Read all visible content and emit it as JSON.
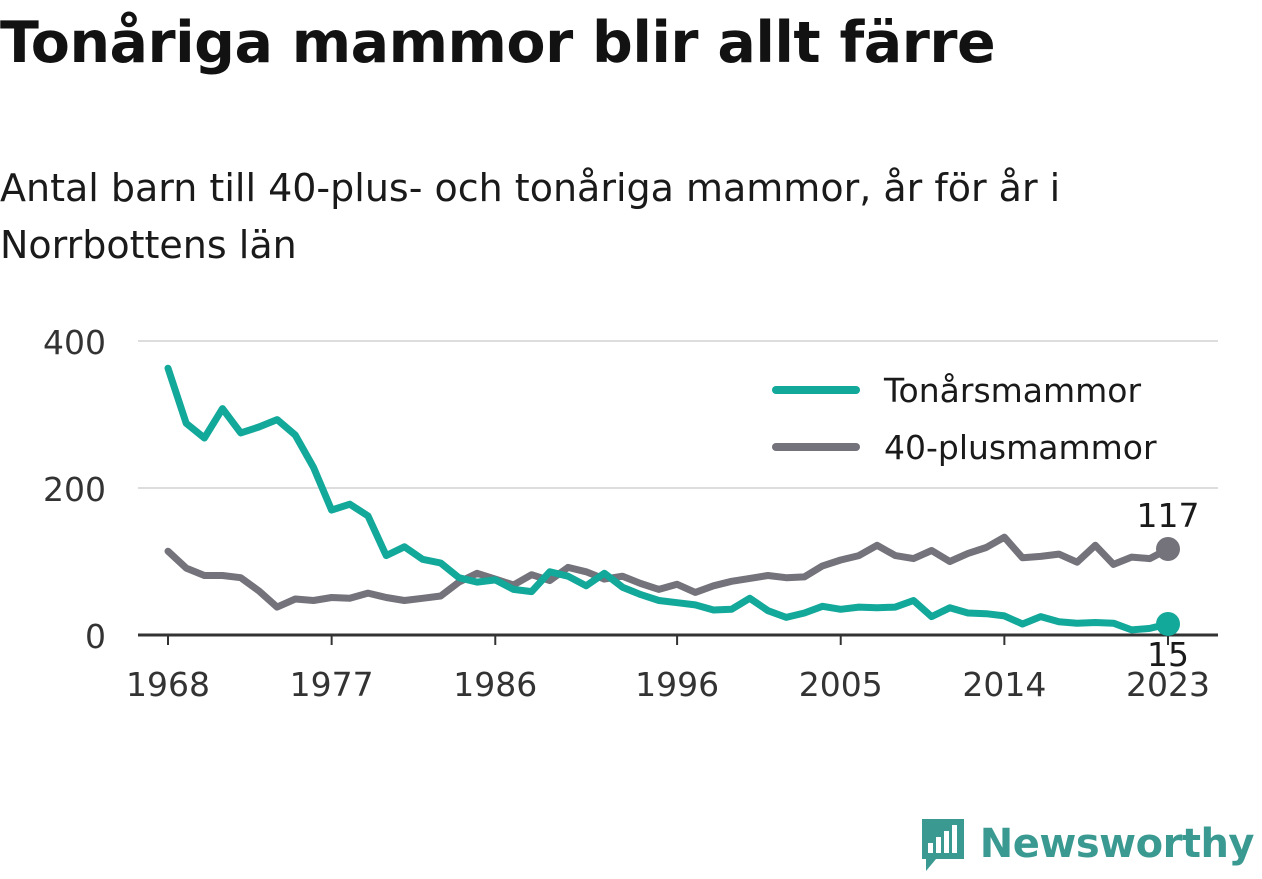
{
  "title": "Tonåriga mammor blir allt färre",
  "subtitle": "Antal barn till 40-plus- och tonåriga mammor, år för år i Norrbottens län",
  "brand": {
    "name": "Newsworthy"
  },
  "colors": {
    "teens": "#12a89a",
    "forty_plus": "#74727a",
    "grid": "#dddddd",
    "axis": "#333333"
  },
  "chart_data": {
    "type": "line",
    "x": [
      1968,
      1969,
      1970,
      1971,
      1972,
      1973,
      1974,
      1975,
      1976,
      1977,
      1978,
      1979,
      1980,
      1981,
      1982,
      1983,
      1984,
      1985,
      1986,
      1987,
      1988,
      1989,
      1990,
      1991,
      1992,
      1993,
      1994,
      1995,
      1996,
      1997,
      1998,
      1999,
      2000,
      2001,
      2002,
      2003,
      2004,
      2005,
      2006,
      2007,
      2008,
      2009,
      2010,
      2011,
      2012,
      2013,
      2014,
      2015,
      2016,
      2017,
      2018,
      2019,
      2020,
      2021,
      2022,
      2023
    ],
    "series": [
      {
        "name": "Tonårsmammor",
        "color": "#12a89a",
        "values": [
          363,
          288,
          268,
          308,
          275,
          283,
          293,
          272,
          228,
          170,
          178,
          162,
          108,
          120,
          103,
          98,
          78,
          72,
          75,
          62,
          59,
          86,
          80,
          67,
          84,
          65,
          55,
          47,
          44,
          41,
          34,
          35,
          50,
          33,
          24,
          30,
          39,
          35,
          38,
          37,
          38,
          47,
          25,
          37,
          30,
          29,
          26,
          15,
          25,
          18,
          16,
          17,
          16,
          7,
          9,
          15
        ]
      },
      {
        "name": "40-plusmammor",
        "color": "#74727a",
        "values": [
          114,
          91,
          81,
          81,
          78,
          60,
          38,
          49,
          47,
          51,
          50,
          57,
          51,
          47,
          50,
          53,
          72,
          84,
          76,
          68,
          82,
          74,
          92,
          86,
          76,
          80,
          70,
          62,
          69,
          58,
          67,
          73,
          77,
          81,
          78,
          79,
          94,
          102,
          108,
          122,
          108,
          104,
          115,
          100,
          111,
          119,
          133,
          105,
          107,
          110,
          99,
          122,
          96,
          106,
          104,
          117
        ]
      }
    ],
    "xticks": [
      1968,
      1977,
      1986,
      1996,
      2005,
      2014,
      2023
    ],
    "yticks": [
      0,
      200,
      400
    ],
    "ylim": [
      0,
      400
    ],
    "xlim": [
      1968,
      2023
    ],
    "end_labels": {
      "forty_plus": "117",
      "teens": "15"
    },
    "legend": {
      "placement": "top-right",
      "labels": [
        "Tonårsmammor",
        "40-plusmammor"
      ]
    },
    "grid": true
  }
}
